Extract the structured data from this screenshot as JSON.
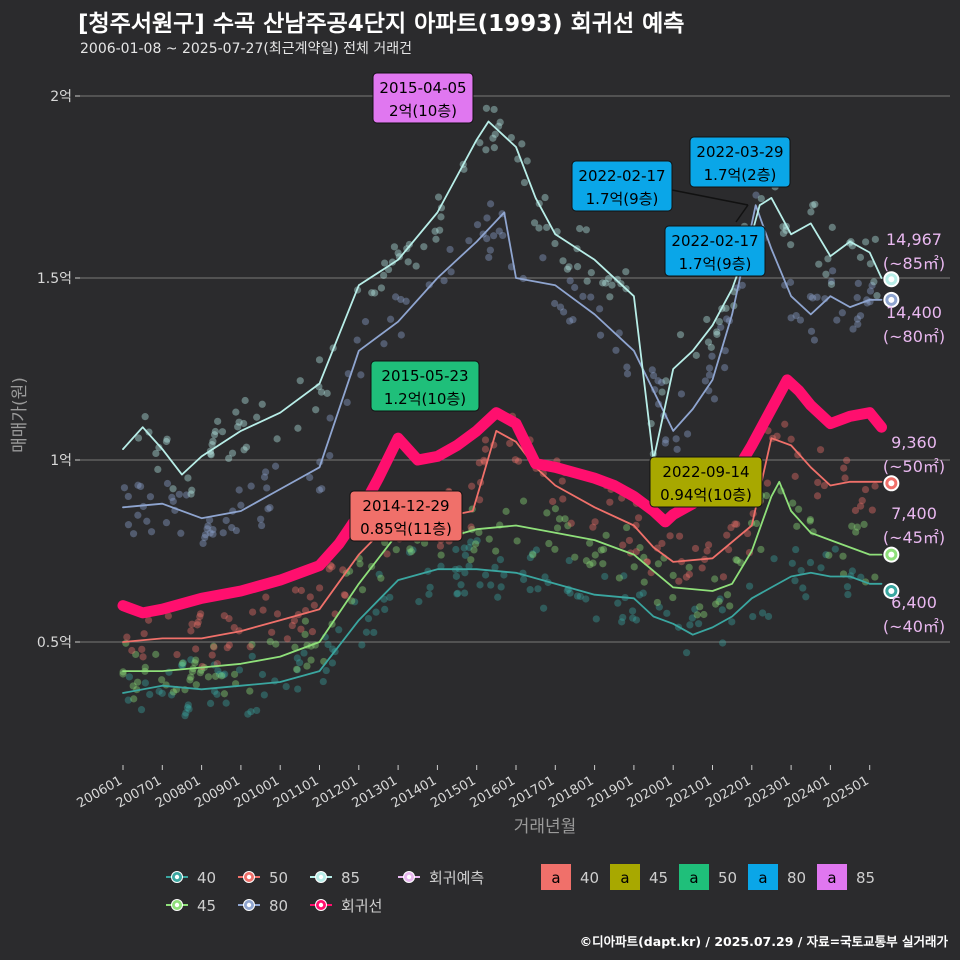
{
  "title": "[청주서원구] 수곡 산남주공4단지 아파트(1993) 회귀선 예측",
  "subtitle": "2006-01-08 ~ 2025-07-27(최근계약일) 전체 거래건",
  "caption": "©디아파트(dapt.kr) / 2025.07.29 / 자료=국토교통부 실거래가",
  "colors": {
    "background": "#2b2b2d",
    "s40": "#3aa6a0",
    "s45": "#8fe07a",
    "s50": "#f0706a",
    "s80": "#8fa5d0",
    "s85": "#b8eee8",
    "regression": "#ff0f6e",
    "forecast": "#e9b8f0"
  },
  "chart_data": {
    "type": "line",
    "title": "[청주서원구] 수곡 산남주공4단지 아파트(1993) 회귀선 예측",
    "xlabel": "거래년월",
    "ylabel": "매매가(원)",
    "ylim": [
      0.3,
      2.1
    ],
    "xlim": [
      2005.6,
      2026.2
    ],
    "y_ticks": [
      {
        "value": 0.5,
        "label": "0.5억"
      },
      {
        "value": 1.0,
        "label": "1억"
      },
      {
        "value": 1.5,
        "label": "1.5억"
      },
      {
        "value": 2.0,
        "label": "2억"
      }
    ],
    "x_ticks": [
      {
        "value": 2006,
        "label": "200601"
      },
      {
        "value": 2007,
        "label": "200701"
      },
      {
        "value": 2008,
        "label": "200801"
      },
      {
        "value": 2009,
        "label": "200901"
      },
      {
        "value": 2010,
        "label": "201001"
      },
      {
        "value": 2011,
        "label": "201101"
      },
      {
        "value": 2012,
        "label": "201201"
      },
      {
        "value": 2013,
        "label": "201301"
      },
      {
        "value": 2014,
        "label": "201401"
      },
      {
        "value": 2015,
        "label": "201501"
      },
      {
        "value": 2016,
        "label": "201601"
      },
      {
        "value": 2017,
        "label": "201701"
      },
      {
        "value": 2018,
        "label": "201801"
      },
      {
        "value": 2019,
        "label": "201901"
      },
      {
        "value": 2020,
        "label": "202001"
      },
      {
        "value": 2021,
        "label": "202101"
      },
      {
        "value": 2022,
        "label": "202201"
      },
      {
        "value": 2023,
        "label": "202301"
      },
      {
        "value": 2024,
        "label": "202401"
      },
      {
        "value": 2025,
        "label": "202501"
      }
    ],
    "series": [
      {
        "name": "40",
        "color": "#3aa6a0",
        "x": [
          2006.0,
          2007.0,
          2008.0,
          2009.0,
          2010.0,
          2011.0,
          2012.0,
          2013.0,
          2014.0,
          2015.0,
          2016.0,
          2017.0,
          2018.0,
          2019.0,
          2019.5,
          2020.0,
          2020.5,
          2021.0,
          2021.5,
          2022.0,
          2022.5,
          2023.0,
          2023.5,
          2024.0,
          2024.5,
          2025.0,
          2025.3
        ],
        "y": [
          0.36,
          0.38,
          0.37,
          0.38,
          0.39,
          0.42,
          0.56,
          0.67,
          0.7,
          0.7,
          0.69,
          0.66,
          0.63,
          0.62,
          0.57,
          0.55,
          0.52,
          0.54,
          0.57,
          0.62,
          0.65,
          0.68,
          0.69,
          0.68,
          0.68,
          0.66,
          0.66
        ]
      },
      {
        "name": "45",
        "color": "#8fe07a",
        "x": [
          2006.0,
          2007.0,
          2008.0,
          2009.0,
          2010.0,
          2011.0,
          2012.0,
          2013.0,
          2013.5,
          2014.0,
          2015.0,
          2016.0,
          2017.0,
          2018.0,
          2019.0,
          2020.0,
          2021.0,
          2021.5,
          2022.0,
          2022.5,
          2022.7,
          2023.0,
          2023.5,
          2024.0,
          2024.5,
          2025.0,
          2025.3
        ],
        "y": [
          0.42,
          0.42,
          0.43,
          0.44,
          0.46,
          0.5,
          0.66,
          0.8,
          0.82,
          0.78,
          0.81,
          0.82,
          0.8,
          0.78,
          0.74,
          0.65,
          0.64,
          0.66,
          0.75,
          0.9,
          0.94,
          0.86,
          0.8,
          0.78,
          0.76,
          0.74,
          0.74
        ]
      },
      {
        "name": "50",
        "color": "#f0706a",
        "x": [
          2006.0,
          2007.0,
          2008.0,
          2009.0,
          2010.0,
          2011.0,
          2012.0,
          2013.0,
          2014.0,
          2014.9,
          2015.5,
          2016.0,
          2016.5,
          2017.0,
          2018.0,
          2019.0,
          2019.5,
          2020.0,
          2021.0,
          2022.0,
          2022.5,
          2023.0,
          2023.5,
          2024.0,
          2024.5,
          2025.0,
          2025.3
        ],
        "y": [
          0.5,
          0.51,
          0.51,
          0.53,
          0.56,
          0.59,
          0.74,
          0.85,
          0.84,
          0.86,
          1.08,
          1.05,
          0.98,
          0.93,
          0.87,
          0.82,
          0.76,
          0.72,
          0.73,
          0.82,
          1.06,
          1.04,
          0.98,
          0.93,
          0.94,
          0.94,
          0.94
        ]
      },
      {
        "name": "80",
        "color": "#8fa5d0",
        "x": [
          2006.0,
          2007.0,
          2008.0,
          2009.0,
          2010.0,
          2011.0,
          2012.0,
          2013.0,
          2014.0,
          2015.0,
          2015.7,
          2016.0,
          2017.0,
          2018.0,
          2019.0,
          2020.0,
          2020.5,
          2021.0,
          2021.5,
          2022.0,
          2022.1,
          2022.5,
          2023.0,
          2023.5,
          2024.0,
          2024.5,
          2025.0,
          2025.3
        ],
        "y": [
          0.87,
          0.88,
          0.84,
          0.86,
          0.92,
          0.98,
          1.3,
          1.38,
          1.5,
          1.6,
          1.68,
          1.5,
          1.48,
          1.4,
          1.3,
          1.08,
          1.14,
          1.22,
          1.4,
          1.65,
          1.7,
          1.58,
          1.45,
          1.4,
          1.45,
          1.42,
          1.44,
          1.44
        ]
      },
      {
        "name": "85",
        "color": "#b8eee8",
        "x": [
          2006.0,
          2006.5,
          2007.0,
          2007.5,
          2008.0,
          2009.0,
          2010.0,
          2011.0,
          2012.0,
          2013.0,
          2014.0,
          2015.0,
          2015.3,
          2016.0,
          2016.5,
          2017.0,
          2018.0,
          2019.0,
          2019.5,
          2020.0,
          2020.5,
          2021.0,
          2021.5,
          2022.0,
          2022.2,
          2022.5,
          2023.0,
          2023.5,
          2024.0,
          2024.5,
          2025.0,
          2025.3
        ],
        "y": [
          1.03,
          1.09,
          1.03,
          0.96,
          1.01,
          1.08,
          1.13,
          1.21,
          1.48,
          1.55,
          1.68,
          1.88,
          1.93,
          1.86,
          1.72,
          1.62,
          1.55,
          1.45,
          1.0,
          1.25,
          1.3,
          1.37,
          1.47,
          1.62,
          1.7,
          1.72,
          1.62,
          1.65,
          1.56,
          1.6,
          1.57,
          1.5
        ]
      },
      {
        "name": "회귀선",
        "color": "#ff0f6e",
        "x": [
          2006.0,
          2006.5,
          2007.0,
          2008.0,
          2009.0,
          2010.0,
          2011.0,
          2011.5,
          2012.0,
          2012.5,
          2013.0,
          2013.5,
          2014.0,
          2014.5,
          2015.0,
          2015.5,
          2016.0,
          2016.5,
          2017.0,
          2018.0,
          2018.5,
          2019.0,
          2019.5,
          2019.8,
          2020.0,
          2020.5,
          2021.0,
          2021.5,
          2022.0,
          2022.5,
          2022.9,
          2023.2,
          2023.5,
          2024.0,
          2024.5,
          2025.0,
          2025.3
        ],
        "y": [
          0.6,
          0.58,
          0.59,
          0.62,
          0.64,
          0.67,
          0.71,
          0.77,
          0.85,
          0.95,
          1.06,
          1.0,
          1.01,
          1.04,
          1.08,
          1.13,
          1.1,
          0.99,
          0.98,
          0.95,
          0.93,
          0.9,
          0.86,
          0.83,
          0.85,
          0.88,
          0.92,
          0.95,
          1.04,
          1.14,
          1.22,
          1.19,
          1.15,
          1.1,
          1.12,
          1.13,
          1.09
        ]
      }
    ],
    "forecast_points": [
      {
        "size": "85",
        "x": 2025.5,
        "y": 1.4967,
        "value": "14,967",
        "area": "(~85㎡)"
      },
      {
        "size": "80",
        "x": 2025.5,
        "y": 1.44,
        "value": "14,400",
        "area": "(~80㎡)"
      },
      {
        "size": "50",
        "x": 2025.5,
        "y": 0.936,
        "value": "9,360",
        "area": "(~50㎡)"
      },
      {
        "size": "45",
        "x": 2025.5,
        "y": 0.74,
        "value": "7,400",
        "area": "(~45㎡)"
      },
      {
        "size": "40",
        "x": 2025.5,
        "y": 0.64,
        "value": "6,400",
        "area": "(~40㎡)"
      }
    ],
    "annotations": [
      {
        "date": "2015-04-05",
        "value": "2억(10층)",
        "size": "85",
        "color": "#e077f0",
        "x": 2015.26,
        "y": 2.0
      },
      {
        "date": "2022-03-29",
        "value": "1.7억(2층)",
        "size": "80",
        "color": "#0aa6e8",
        "x": 2022.24,
        "y": 1.7
      },
      {
        "date": "2022-02-17",
        "value": "1.7억(9층)",
        "size": "80",
        "color": "#0aa6e8",
        "x": 2022.13,
        "y": 1.7
      },
      {
        "date": "2022-02-17",
        "value": "1.7억(9층)",
        "size": "80",
        "color": "#0aa6e8",
        "x": 2022.13,
        "y": 1.68
      },
      {
        "date": "2015-05-23",
        "value": "1.2억(10층)",
        "size": "50",
        "color": "#1fbf7a",
        "x": 2015.39,
        "y": 1.2
      },
      {
        "date": "2014-12-29",
        "value": "0.85억(11층)",
        "size": "40",
        "color": "#f0706a",
        "x": 2014.99,
        "y": 0.85
      },
      {
        "date": "2022-09-14",
        "value": "0.94억(10층)",
        "size": "45",
        "color": "#a8a800",
        "x": 2022.7,
        "y": 0.94
      }
    ],
    "legend_left": [
      {
        "label": "40",
        "color": "#3aa6a0"
      },
      {
        "label": "50",
        "color": "#f0706a"
      },
      {
        "label": "85",
        "color": "#b8eee8"
      },
      {
        "label": "45",
        "color": "#8fe07a"
      },
      {
        "label": "80",
        "color": "#8fa5d0"
      },
      {
        "label": "회귀선",
        "color": "#ff0f6e"
      },
      {
        "label": "회귀예측",
        "color": "#e9b8f0"
      }
    ],
    "legend_right": [
      {
        "label": "40",
        "letter": "a",
        "color": "#f0706a"
      },
      {
        "label": "45",
        "letter": "a",
        "color": "#a8a800"
      },
      {
        "label": "50",
        "letter": "a",
        "color": "#1fbf7a"
      },
      {
        "label": "80",
        "letter": "a",
        "color": "#0aa6e8"
      },
      {
        "label": "85",
        "letter": "a",
        "color": "#e077f0"
      }
    ]
  }
}
